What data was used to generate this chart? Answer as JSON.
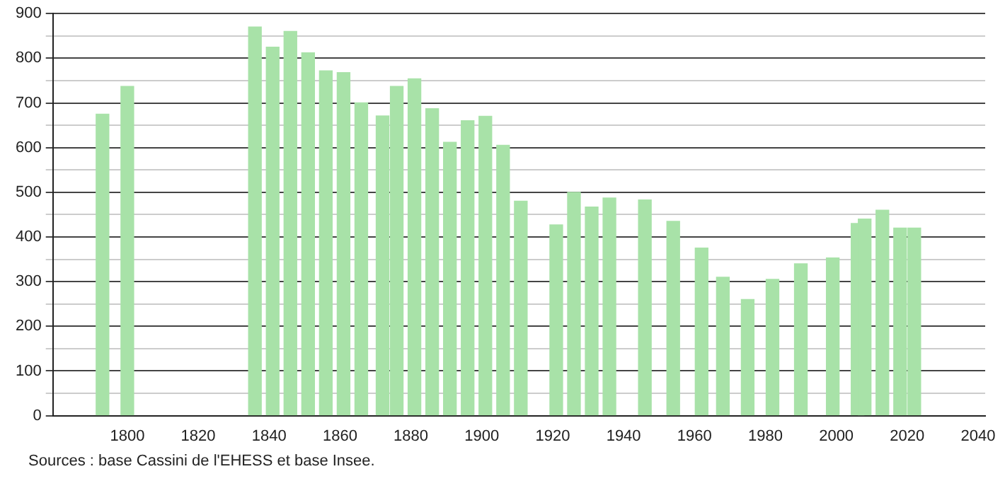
{
  "chart_data": {
    "type": "bar",
    "x": [
      1793,
      1800,
      1836,
      1841,
      1846,
      1851,
      1856,
      1861,
      1866,
      1872,
      1876,
      1881,
      1886,
      1891,
      1896,
      1901,
      1906,
      1911,
      1921,
      1926,
      1931,
      1936,
      1946,
      1954,
      1962,
      1968,
      1975,
      1982,
      1990,
      1999,
      2006,
      2008,
      2013,
      2018,
      2022
    ],
    "values": [
      675,
      737,
      870,
      825,
      860,
      812,
      772,
      768,
      700,
      671,
      737,
      754,
      687,
      612,
      660,
      670,
      605,
      480,
      427,
      500,
      467,
      487,
      483,
      435,
      375,
      310,
      260,
      305,
      340,
      353,
      430,
      440,
      460,
      420,
      420
    ],
    "color": "#a8e2a8",
    "xlim": [
      1779,
      2042
    ],
    "xticks": [
      1800,
      1820,
      1840,
      1860,
      1880,
      1900,
      1920,
      1940,
      1960,
      1980,
      2000,
      2020,
      2040
    ],
    "ylim": [
      0,
      900
    ],
    "yticks": [
      0,
      {
        "value": 50,
        "label": null
      },
      100,
      {
        "value": 150,
        "label": null
      },
      200,
      {
        "value": 250,
        "label": null
      },
      300,
      {
        "value": 350,
        "label": null
      },
      400,
      {
        "value": 450,
        "label": null
      },
      500,
      {
        "value": 550,
        "label": null
      },
      600,
      {
        "value": 650,
        "label": null
      },
      700,
      {
        "value": 750,
        "label": null
      },
      800,
      {
        "value": 850,
        "label": null
      },
      900
    ],
    "grid": "y",
    "legend": false,
    "annotations": [
      "Sources : base Cassini de l'EHESS et base Insee."
    ]
  }
}
